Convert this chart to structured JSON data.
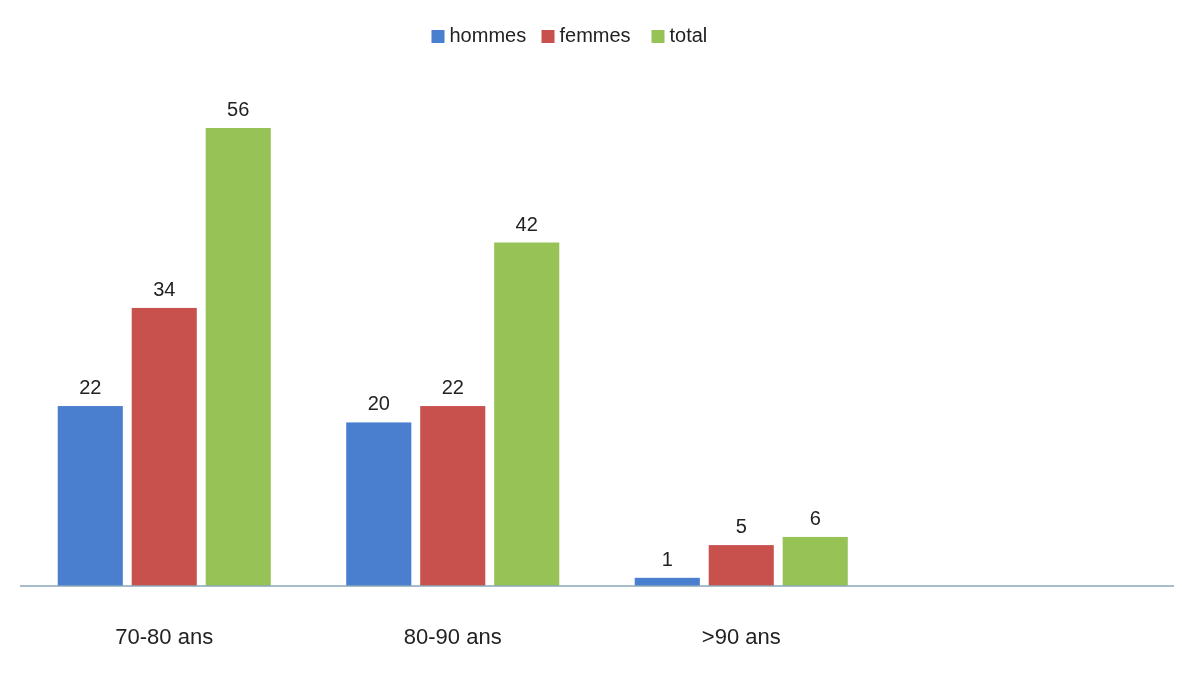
{
  "chart_data": {
    "type": "bar",
    "categories": [
      "70-80 ans",
      "80-90 ans",
      ">90 ans",
      null
    ],
    "series": [
      {
        "name": "hommes",
        "color": "#4a7ecf",
        "values": [
          22,
          20,
          1,
          null
        ]
      },
      {
        "name": "femmes",
        "color": "#c8504d",
        "values": [
          34,
          22,
          5,
          null
        ]
      },
      {
        "name": "total",
        "color": "#97c255",
        "values": [
          56,
          42,
          6,
          null
        ]
      }
    ],
    "data_labels": true,
    "legend": "top"
  }
}
